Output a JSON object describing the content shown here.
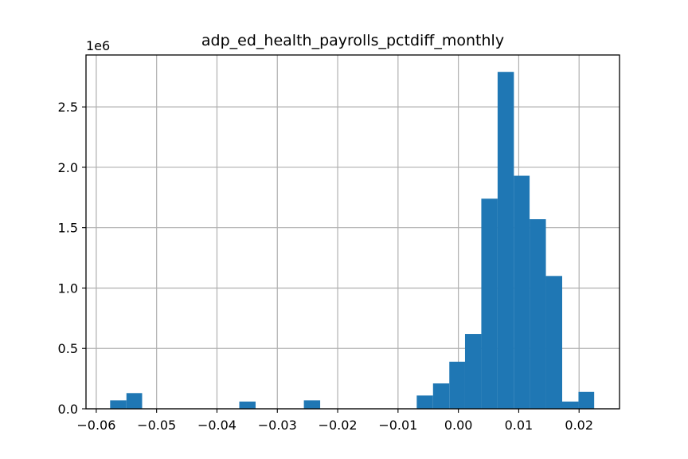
{
  "chart_data": {
    "type": "histogram",
    "title": "adp_ed_health_payrolls_pctdiff_monthly",
    "xlabel": "",
    "ylabel": "",
    "y_offset_label": "1e6",
    "xlim": [
      -0.0617,
      0.0267
    ],
    "ylim": [
      0,
      2.93
    ],
    "grid": true,
    "color": "#1f77b4",
    "x_ticks": [
      {
        "value": -0.06,
        "label": "−0.06"
      },
      {
        "value": -0.05,
        "label": "−0.05"
      },
      {
        "value": -0.04,
        "label": "−0.04"
      },
      {
        "value": -0.03,
        "label": "−0.03"
      },
      {
        "value": -0.02,
        "label": "−0.02"
      },
      {
        "value": -0.01,
        "label": "−0.01"
      },
      {
        "value": 0.0,
        "label": "0.00"
      },
      {
        "value": 0.01,
        "label": "0.01"
      },
      {
        "value": 0.02,
        "label": "0.02"
      }
    ],
    "y_ticks": [
      {
        "value": 0.0,
        "label": "0.0"
      },
      {
        "value": 0.5,
        "label": "0.5"
      },
      {
        "value": 1.0,
        "label": "1.0"
      },
      {
        "value": 1.5,
        "label": "1.5"
      },
      {
        "value": 2.0,
        "label": "2.0"
      },
      {
        "value": 2.5,
        "label": "2.5"
      }
    ],
    "bins": [
      {
        "x0": -0.0577,
        "x1": -0.055,
        "value": 0.07
      },
      {
        "x0": -0.055,
        "x1": -0.0524,
        "value": 0.13
      },
      {
        "x0": -0.0524,
        "x1": -0.0497,
        "value": 0
      },
      {
        "x0": -0.0497,
        "x1": -0.047,
        "value": 0
      },
      {
        "x0": -0.047,
        "x1": -0.0443,
        "value": 0
      },
      {
        "x0": -0.0443,
        "x1": -0.0417,
        "value": 0
      },
      {
        "x0": -0.0417,
        "x1": -0.039,
        "value": 0
      },
      {
        "x0": -0.039,
        "x1": -0.0363,
        "value": 0
      },
      {
        "x0": -0.0363,
        "x1": -0.0336,
        "value": 0.06
      },
      {
        "x0": -0.0336,
        "x1": -0.031,
        "value": 0
      },
      {
        "x0": -0.031,
        "x1": -0.0283,
        "value": 0
      },
      {
        "x0": -0.0283,
        "x1": -0.0256,
        "value": 0
      },
      {
        "x0": -0.0256,
        "x1": -0.0229,
        "value": 0.07
      },
      {
        "x0": -0.0229,
        "x1": -0.0203,
        "value": 0
      },
      {
        "x0": -0.0203,
        "x1": -0.0176,
        "value": 0
      },
      {
        "x0": -0.0176,
        "x1": -0.0149,
        "value": 0
      },
      {
        "x0": -0.0149,
        "x1": -0.0122,
        "value": 0
      },
      {
        "x0": -0.0122,
        "x1": -0.0096,
        "value": 0
      },
      {
        "x0": -0.0096,
        "x1": -0.0069,
        "value": 0
      },
      {
        "x0": -0.0069,
        "x1": -0.0042,
        "value": 0.11
      },
      {
        "x0": -0.0042,
        "x1": -0.0015,
        "value": 0.21
      },
      {
        "x0": -0.0015,
        "x1": 0.0011,
        "value": 0.39
      },
      {
        "x0": 0.0011,
        "x1": 0.0038,
        "value": 0.62
      },
      {
        "x0": 0.0038,
        "x1": 0.0065,
        "value": 1.74
      },
      {
        "x0": 0.0065,
        "x1": 0.0092,
        "value": 2.79
      },
      {
        "x0": 0.0092,
        "x1": 0.0118,
        "value": 1.93
      },
      {
        "x0": 0.0118,
        "x1": 0.0145,
        "value": 1.57
      },
      {
        "x0": 0.0145,
        "x1": 0.0172,
        "value": 1.1
      },
      {
        "x0": 0.0172,
        "x1": 0.0199,
        "value": 0.06
      },
      {
        "x0": 0.0199,
        "x1": 0.0225,
        "value": 0.14
      }
    ]
  }
}
